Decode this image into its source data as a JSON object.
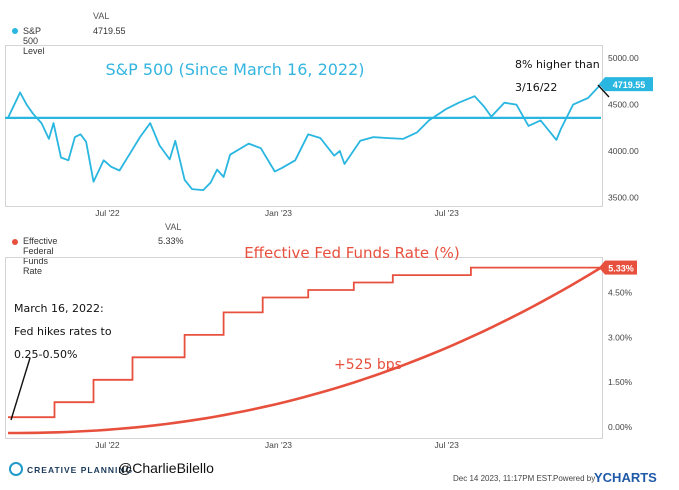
{
  "chart_data": [
    {
      "type": "line",
      "title": "S&P 500 (Since March 16, 2022)",
      "legend": {
        "header": "VAL",
        "label": "S&P 500 Level",
        "value": "4719.55"
      },
      "color": "#29b6e0",
      "x_ticks": [
        "Jul '22",
        "Jan '23",
        "Jul '23"
      ],
      "y_ticks": [
        "5000.00",
        "4500.00",
        "4000.00",
        "3500.00"
      ],
      "ylim": [
        3430,
        5130
      ],
      "xlim": [
        "2022-03-16",
        "2023-12-14"
      ],
      "reference_line": 4357,
      "last_value_label": "4719.55",
      "annotation": "8% higher than 3/16/22",
      "series": [
        {
          "name": "S&P 500 Level",
          "x": [
            "2022-03-16",
            "2022-03-29",
            "2022-04-05",
            "2022-04-12",
            "2022-04-21",
            "2022-04-29",
            "2022-05-04",
            "2022-05-12",
            "2022-05-20",
            "2022-05-27",
            "2022-06-02",
            "2022-06-08",
            "2022-06-16",
            "2022-06-27",
            "2022-07-05",
            "2022-07-14",
            "2022-07-25",
            "2022-08-05",
            "2022-08-16",
            "2022-08-26",
            "2022-09-06",
            "2022-09-12",
            "2022-09-22",
            "2022-09-30",
            "2022-10-12",
            "2022-10-20",
            "2022-10-27",
            "2022-11-03",
            "2022-11-10",
            "2022-11-30",
            "2022-12-13",
            "2022-12-28",
            "2023-01-05",
            "2023-01-19",
            "2023-02-02",
            "2023-02-15",
            "2023-03-02",
            "2023-03-08",
            "2023-03-13",
            "2023-03-30",
            "2023-04-13",
            "2023-04-27",
            "2023-05-15",
            "2023-05-30",
            "2023-06-12",
            "2023-06-30",
            "2023-07-14",
            "2023-07-31",
            "2023-08-10",
            "2023-08-18",
            "2023-09-01",
            "2023-09-14",
            "2023-09-27",
            "2023-10-10",
            "2023-10-27",
            "2023-11-01",
            "2023-11-14",
            "2023-11-30",
            "2023-12-14"
          ],
          "values": [
            4357,
            4630,
            4500,
            4400,
            4300,
            4130,
            4300,
            3930,
            3900,
            4150,
            4180,
            4100,
            3670,
            3900,
            3830,
            3790,
            3970,
            4150,
            4300,
            4060,
            3910,
            4110,
            3690,
            3590,
            3580,
            3660,
            3800,
            3720,
            3960,
            4080,
            4030,
            3780,
            3820,
            3900,
            4180,
            4140,
            3950,
            4000,
            3860,
            4110,
            4150,
            4140,
            4130,
            4200,
            4330,
            4450,
            4520,
            4590,
            4480,
            4370,
            4520,
            4500,
            4270,
            4330,
            4120,
            4240,
            4500,
            4570,
            4719.55
          ]
        }
      ]
    },
    {
      "type": "line",
      "title": "Effective Fed Funds Rate (%)",
      "legend": {
        "header": "VAL",
        "label": "Effective Federal Funds Rate",
        "value": "5.33%"
      },
      "color": "#e8503e",
      "x_ticks": [
        "Jul '22",
        "Jan '23",
        "Jul '23"
      ],
      "y_ticks": [
        "4.50%",
        "3.00%",
        "1.50%",
        "0.00%"
      ],
      "ylim": [
        -0.3,
        5.65
      ],
      "xlim": [
        "2022-03-16",
        "2023-12-14"
      ],
      "last_value_label": "5.33%",
      "annotation_left": [
        "March 16, 2022:",
        "Fed hikes rates to",
        "0.25-0.50%"
      ],
      "annotation_center": "+525 bps",
      "series": [
        {
          "name": "Effective Federal Funds Rate",
          "steps": [
            [
              "2022-03-16",
              0.33
            ],
            [
              "2022-05-05",
              0.83
            ],
            [
              "2022-06-16",
              1.58
            ],
            [
              "2022-07-28",
              2.33
            ],
            [
              "2022-09-22",
              3.08
            ],
            [
              "2022-11-03",
              3.83
            ],
            [
              "2022-12-15",
              4.33
            ],
            [
              "2023-02-02",
              4.58
            ],
            [
              "2023-03-23",
              4.83
            ],
            [
              "2023-05-04",
              5.08
            ],
            [
              "2023-07-27",
              5.33
            ],
            [
              "2023-12-14",
              5.33
            ]
          ]
        }
      ],
      "curve": {
        "x": [
          "2022-03-16",
          "2023-12-14"
        ],
        "values": [
          -0.2,
          5.33
        ]
      }
    }
  ],
  "footer": {
    "brand": "CREATIVE PLANNING",
    "handle": "@CharlieBilello",
    "date": "Dec 14 2023, 11:17PM EST.",
    "powered": "Powered by",
    "ycharts": "YCHARTS"
  }
}
